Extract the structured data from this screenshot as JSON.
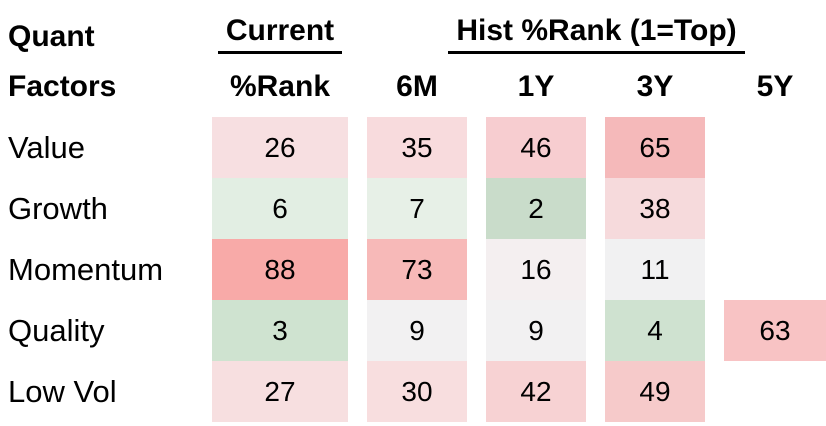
{
  "chart_data": {
    "type": "heatmap",
    "corner": {
      "line1": "Quant",
      "line2": "Factors"
    },
    "groups": {
      "current": "Current",
      "hist": "Hist %Rank (1=Top)"
    },
    "columns": [
      "%Rank",
      "6M",
      "1Y",
      "3Y",
      "5Y"
    ],
    "scale_note": "1=Top; green = low (top) percentile rank, red = high percentile rank",
    "underline_color": "#000000",
    "rows": [
      {
        "label": "Value",
        "cells": [
          {
            "v": 26,
            "bg": "#f7dfe1"
          },
          {
            "v": 35,
            "bg": "#f8dbdd"
          },
          {
            "v": 46,
            "bg": "#f7cdd0"
          },
          {
            "v": 65,
            "bg": "#f5b9ba"
          },
          {
            "v": null,
            "bg": null
          }
        ]
      },
      {
        "label": "Growth",
        "cells": [
          {
            "v": 6,
            "bg": "#e2eee3"
          },
          {
            "v": 7,
            "bg": "#e7f0e7"
          },
          {
            "v": 2,
            "bg": "#c9dcca"
          },
          {
            "v": 38,
            "bg": "#f6dadc"
          },
          {
            "v": null,
            "bg": null
          }
        ]
      },
      {
        "label": "Momentum",
        "cells": [
          {
            "v": 88,
            "bg": "#f8aaa8"
          },
          {
            "v": 73,
            "bg": "#f7b9b8"
          },
          {
            "v": 16,
            "bg": "#f4eff0"
          },
          {
            "v": 11,
            "bg": "#f1f1f2"
          },
          {
            "v": null,
            "bg": null
          }
        ]
      },
      {
        "label": "Quality",
        "cells": [
          {
            "v": 3,
            "bg": "#cfe3d0"
          },
          {
            "v": 9,
            "bg": "#f2f1f2"
          },
          {
            "v": 9,
            "bg": "#f2f1f2"
          },
          {
            "v": 4,
            "bg": "#cfe2d0"
          },
          {
            "v": 63,
            "bg": "#f8c3c4"
          }
        ]
      },
      {
        "label": "Low Vol",
        "cells": [
          {
            "v": 27,
            "bg": "#f7dfe0"
          },
          {
            "v": 30,
            "bg": "#f8dedf"
          },
          {
            "v": 42,
            "bg": "#f7d2d3"
          },
          {
            "v": 49,
            "bg": "#f6caca"
          },
          {
            "v": null,
            "bg": null
          }
        ]
      }
    ]
  }
}
